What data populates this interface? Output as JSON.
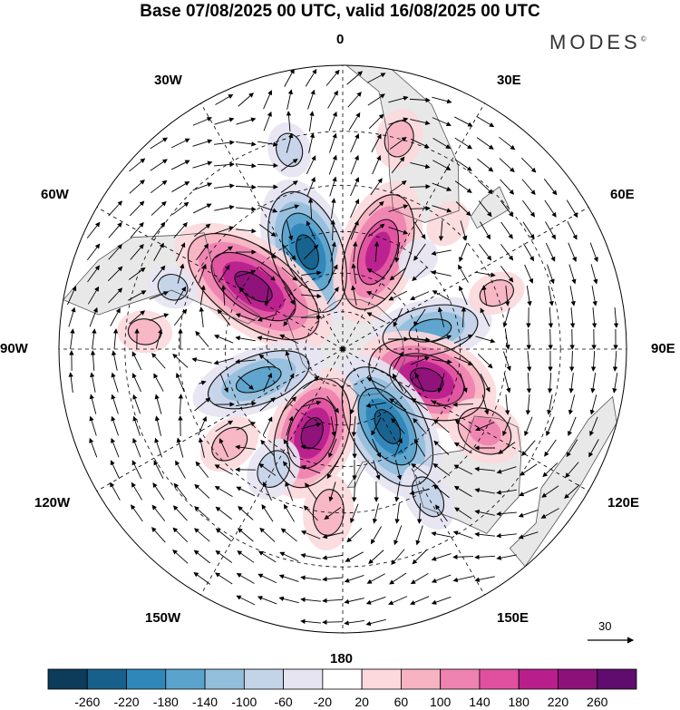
{
  "title": "Base 07/08/2025 00 UTC, valid 16/08/2025 00 UTC",
  "brand": "MODES",
  "brand_mark": "©",
  "longitude_labels": {
    "top": "0",
    "top_right": "30E",
    "upper_right": "60E",
    "right": "90E",
    "lower_right": "120E",
    "bottom_right": "150E",
    "bottom": "180",
    "bottom_left": "150W",
    "lower_left": "120W",
    "left": "90W",
    "upper_left": "60W",
    "top_left": "30W"
  },
  "reference_vector": {
    "value": "30"
  },
  "legend": {
    "ticks": [
      "-260",
      "-220",
      "-180",
      "-140",
      "-100",
      "-60",
      "-20",
      "20",
      "60",
      "100",
      "140",
      "180",
      "220",
      "260"
    ],
    "colors": [
      "#0d3b5a",
      "#17608c",
      "#2f86b8",
      "#5aa3cc",
      "#93bedc",
      "#c3d3e8",
      "#e6e4f1",
      "#ffffff",
      "#fbd9dc",
      "#f7b3c2",
      "#ee82b0",
      "#e0509f",
      "#b91e8d",
      "#8c127a",
      "#5f0c6e"
    ]
  },
  "anomaly_cells": [
    {
      "lon": 340,
      "lat": -50,
      "value": -220,
      "aspect": 1.8,
      "name": "negative-anomaly-south-atlantic"
    },
    {
      "lon": 20,
      "lat": -50,
      "value": 200,
      "aspect": 1.9,
      "name": "positive-anomaly-southern-africa"
    },
    {
      "lon": 305,
      "lat": -48,
      "value": 240,
      "aspect": 2.0,
      "name": "positive-anomaly-south-america"
    },
    {
      "lon": 78,
      "lat": -55,
      "value": -150,
      "aspect": 2.0,
      "name": "negative-anomaly-indian-ocean"
    },
    {
      "lon": 110,
      "lat": -55,
      "value": 250,
      "aspect": 1.6,
      "name": "positive-anomaly-south-of-australia"
    },
    {
      "lon": 150,
      "lat": -55,
      "value": -240,
      "aspect": 1.8,
      "name": "negative-anomaly-tasman-sea"
    },
    {
      "lon": 200,
      "lat": -55,
      "value": 230,
      "aspect": 1.6,
      "name": "positive-anomaly-south-pacific"
    },
    {
      "lon": 250,
      "lat": -55,
      "value": -150,
      "aspect": 2.2,
      "name": "negative-anomaly-east-pacific"
    },
    {
      "lon": 230,
      "lat": -35,
      "value": 80,
      "aspect": 1.4,
      "name": "positive-anomaly-subtropical-pacific"
    },
    {
      "lon": 210,
      "lat": -38,
      "value": -90,
      "aspect": 1.3,
      "name": "negative-anomaly-subtropical-pacific"
    },
    {
      "lon": 185,
      "lat": -30,
      "value": 90,
      "aspect": 1.5,
      "name": "positive-anomaly-north-new-zealand"
    },
    {
      "lon": 150,
      "lat": -28,
      "value": -70,
      "aspect": 1.6,
      "name": "negative-anomaly-australia-east"
    },
    {
      "lon": 120,
      "lat": -30,
      "value": 120,
      "aspect": 1.3,
      "name": "positive-anomaly-australia"
    },
    {
      "lon": 70,
      "lat": -30,
      "value": 60,
      "aspect": 1.4,
      "name": "positive-anomaly-indian-subtropics"
    },
    {
      "lon": 40,
      "lat": -30,
      "value": 50,
      "aspect": 1.3,
      "name": "positive-anomaly-madagascar"
    },
    {
      "lon": 15,
      "lat": -15,
      "value": 70,
      "aspect": 1.3,
      "name": "positive-anomaly-equatorial-africa"
    },
    {
      "lon": 345,
      "lat": -18,
      "value": -60,
      "aspect": 1.3,
      "name": "negative-anomaly-equatorial-atlantic"
    },
    {
      "lon": 275,
      "lat": -20,
      "value": 60,
      "aspect": 1.3,
      "name": "positive-anomaly-east-pacific-tropics"
    },
    {
      "lon": 290,
      "lat": -25,
      "value": -60,
      "aspect": 1.2,
      "name": "negative-anomaly-chile"
    },
    {
      "lon": 40,
      "lat": -45,
      "value": -50,
      "aspect": 1.2,
      "name": "negative-anomaly-south-indian"
    }
  ],
  "land_shapes": [
    {
      "name": "antarctica-landmass",
      "points": [
        [
          0,
          -70
        ],
        [
          20,
          -69
        ],
        [
          40,
          -68
        ],
        [
          60,
          -67
        ],
        [
          80,
          -66
        ],
        [
          100,
          -65
        ],
        [
          120,
          -66
        ],
        [
          140,
          -67
        ],
        [
          160,
          -70
        ],
        [
          170,
          -75
        ],
        [
          190,
          -78
        ],
        [
          210,
          -76
        ],
        [
          230,
          -74
        ],
        [
          250,
          -73
        ],
        [
          270,
          -72
        ],
        [
          290,
          -68
        ],
        [
          300,
          -64
        ],
        [
          310,
          -70
        ],
        [
          330,
          -73
        ],
        [
          350,
          -71
        ]
      ]
    },
    {
      "name": "south-america-landmass",
      "points": [
        [
          280,
          0
        ],
        [
          290,
          -5
        ],
        [
          298,
          -10
        ],
        [
          305,
          -20
        ],
        [
          310,
          -25
        ],
        [
          300,
          -35
        ],
        [
          295,
          -45
        ],
        [
          292,
          -55
        ],
        [
          285,
          -52
        ],
        [
          287,
          -40
        ],
        [
          289,
          -25
        ],
        [
          282,
          -15
        ],
        [
          278,
          -8
        ]
      ]
    },
    {
      "name": "africa-landmass",
      "points": [
        [
          350,
          5
        ],
        [
          0,
          3
        ],
        [
          10,
          0
        ],
        [
          20,
          -5
        ],
        [
          32,
          -15
        ],
        [
          40,
          -25
        ],
        [
          33,
          -34
        ],
        [
          20,
          -35
        ],
        [
          15,
          -25
        ],
        [
          12,
          -15
        ],
        [
          8,
          -5
        ],
        [
          355,
          5
        ]
      ]
    },
    {
      "name": "madagascar-landmass",
      "points": [
        [
          44,
          -13
        ],
        [
          50,
          -15
        ],
        [
          48,
          -25
        ],
        [
          44,
          -24
        ],
        [
          43,
          -18
        ]
      ]
    },
    {
      "name": "australia-landmass",
      "points": [
        [
          114,
          -22
        ],
        [
          120,
          -18
        ],
        [
          130,
          -12
        ],
        [
          136,
          -12
        ],
        [
          142,
          -11
        ],
        [
          146,
          -18
        ],
        [
          153,
          -26
        ],
        [
          150,
          -37
        ],
        [
          140,
          -38
        ],
        [
          130,
          -32
        ],
        [
          117,
          -35
        ],
        [
          114,
          -28
        ]
      ]
    },
    {
      "name": "new-zealand-landmass",
      "points": [
        [
          167,
          -46
        ],
        [
          172,
          -42
        ],
        [
          175,
          -38
        ],
        [
          178,
          -38
        ],
        [
          174,
          -42
        ],
        [
          170,
          -46
        ]
      ]
    },
    {
      "name": "indonesia-landmass",
      "points": [
        [
          100,
          -2
        ],
        [
          106,
          -6
        ],
        [
          115,
          -8
        ],
        [
          125,
          -9
        ],
        [
          132,
          -5
        ],
        [
          140,
          -5
        ],
        [
          140,
          0
        ],
        [
          120,
          -2
        ],
        [
          105,
          0
        ]
      ]
    },
    {
      "name": "arabia-india-edge",
      "points": [
        [
          40,
          5
        ],
        [
          50,
          10
        ],
        [
          60,
          8
        ],
        [
          70,
          5
        ],
        [
          77,
          8
        ],
        [
          80,
          5
        ],
        [
          60,
          2
        ],
        [
          45,
          2
        ]
      ]
    }
  ]
}
